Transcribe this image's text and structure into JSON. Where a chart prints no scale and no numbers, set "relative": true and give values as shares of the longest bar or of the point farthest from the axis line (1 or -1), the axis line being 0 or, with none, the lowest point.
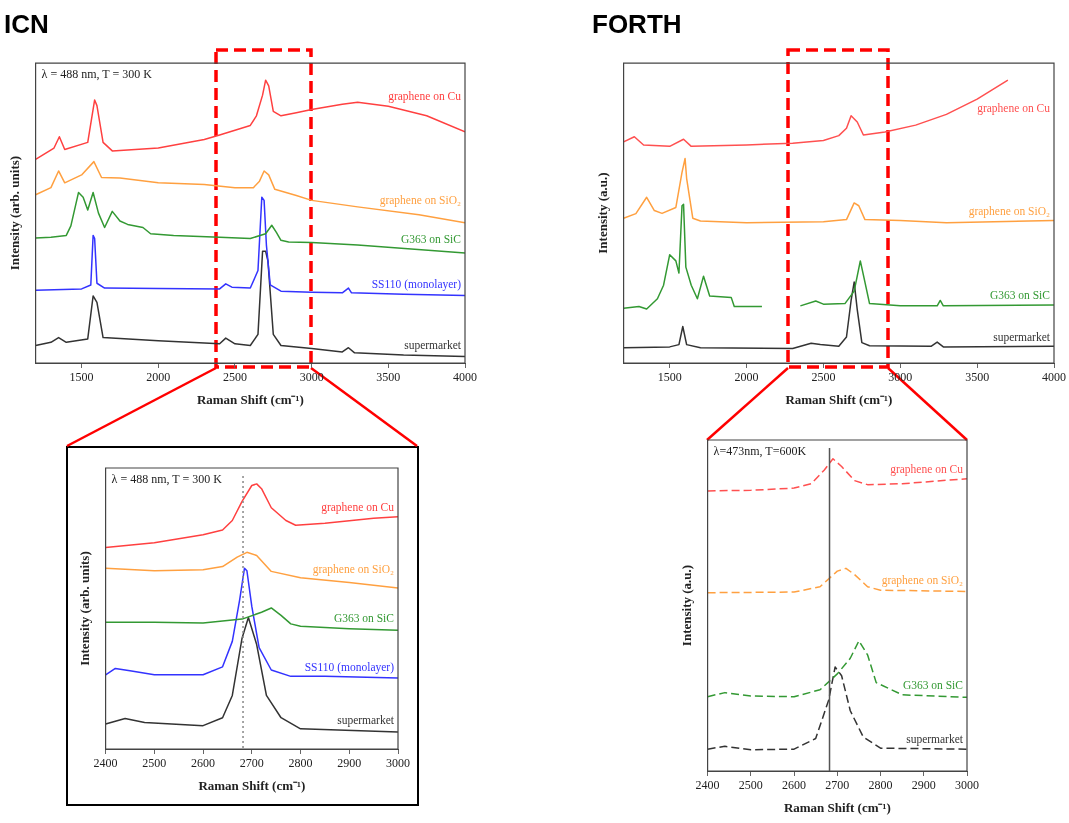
{
  "chart_data": [
    {
      "type": "line",
      "title": "ICN",
      "xlabel": "Raman Shift (cm⁻¹)",
      "ylabel": "Intensity (arb. units)",
      "annotations": [
        "λ = 488 nm, T = 300 K"
      ],
      "relative": true,
      "xlim": [
        1200,
        4000
      ],
      "xticks": [
        1500,
        2000,
        2500,
        3000,
        3500,
        4000
      ],
      "grid": false,
      "legend": false,
      "series": [
        {
          "name": "graphene on Cu",
          "color": "#ff4040",
          "x": [
            1200,
            1320,
            1355,
            1390,
            1540,
            1585,
            1600,
            1640,
            1700,
            2000,
            2300,
            2400,
            2600,
            2640,
            2680,
            2700,
            2720,
            2750,
            2800,
            2900,
            3000,
            3200,
            3300,
            3500,
            3750,
            4000
          ],
          "values": [
            0.72,
            0.76,
            0.8,
            0.755,
            0.78,
            0.93,
            0.91,
            0.78,
            0.75,
            0.76,
            0.79,
            0.806,
            0.84,
            0.874,
            0.947,
            1.0,
            0.98,
            0.89,
            0.874,
            0.885,
            0.896,
            0.915,
            0.922,
            0.908,
            0.874,
            0.817
          ]
        },
        {
          "name": "graphene on SiO₂",
          "color": "#ffa040",
          "x": [
            1200,
            1300,
            1350,
            1390,
            1500,
            1580,
            1630,
            1750,
            2000,
            2300,
            2500,
            2620,
            2660,
            2690,
            2720,
            2760,
            2900,
            3000,
            3300,
            3700,
            4000
          ],
          "values": [
            0.595,
            0.62,
            0.679,
            0.637,
            0.665,
            0.712,
            0.656,
            0.654,
            0.637,
            0.631,
            0.62,
            0.62,
            0.643,
            0.679,
            0.665,
            0.614,
            0.592,
            0.575,
            0.552,
            0.524,
            0.496
          ]
        },
        {
          "name": "G363 on SiC",
          "color": "#339933",
          "x": [
            1200,
            1300,
            1400,
            1430,
            1480,
            1510,
            1540,
            1575,
            1610,
            1650,
            1700,
            1750,
            1800,
            1900,
            1950,
            2100,
            2400,
            2600,
            2700,
            2740,
            2770,
            2800,
            2850,
            3000,
            3300,
            4000
          ],
          "values": [
            0.442,
            0.445,
            0.451,
            0.485,
            0.603,
            0.586,
            0.541,
            0.603,
            0.53,
            0.479,
            0.536,
            0.502,
            0.49,
            0.479,
            0.457,
            0.451,
            0.445,
            0.44,
            0.457,
            0.487,
            0.462,
            0.434,
            0.428,
            0.426,
            0.417,
            0.389
          ]
        },
        {
          "name": "SS110 (monolayer)",
          "color": "#3333ff",
          "x": [
            1200,
            1500,
            1560,
            1575,
            1585,
            1600,
            1650,
            2000,
            2400,
            2440,
            2480,
            2600,
            2650,
            2675,
            2690,
            2705,
            2730,
            2800,
            3000,
            3200,
            3240,
            3260,
            3600,
            4000
          ],
          "values": [
            0.257,
            0.262,
            0.276,
            0.451,
            0.44,
            0.282,
            0.265,
            0.263,
            0.262,
            0.28,
            0.268,
            0.265,
            0.327,
            0.586,
            0.575,
            0.417,
            0.276,
            0.254,
            0.25,
            0.248,
            0.265,
            0.248,
            0.243,
            0.239
          ]
        },
        {
          "name": "supermarket",
          "color": "#333333",
          "x": [
            1200,
            1300,
            1350,
            1400,
            1540,
            1575,
            1600,
            1640,
            2000,
            2400,
            2440,
            2500,
            2600,
            2650,
            2680,
            2700,
            2715,
            2750,
            2800,
            3000,
            3200,
            3240,
            3280,
            3600,
            4000
          ],
          "values": [
            0.062,
            0.073,
            0.09,
            0.073,
            0.085,
            0.237,
            0.214,
            0.09,
            0.079,
            0.068,
            0.088,
            0.068,
            0.062,
            0.101,
            0.395,
            0.395,
            0.361,
            0.101,
            0.062,
            0.051,
            0.039,
            0.054,
            0.036,
            0.028,
            0.023
          ]
        }
      ]
    },
    {
      "type": "line",
      "title": "FORTH",
      "xlabel": "Raman Shift (cm⁻¹)",
      "ylabel": "Intensity (a.u.)",
      "relative": true,
      "xlim": [
        1200,
        4000
      ],
      "xticks": [
        1500,
        2000,
        2500,
        3000,
        3500,
        4000
      ],
      "grid": false,
      "legend": false,
      "series": [
        {
          "name": "graphene on Cu",
          "color": "#ff5050",
          "x": [
            1200,
            1270,
            1330,
            1500,
            1590,
            1640,
            2000,
            2300,
            2500,
            2600,
            2650,
            2680,
            2720,
            2760,
            2900,
            3100,
            3300,
            3500,
            3700
          ],
          "values": [
            0.782,
            0.8,
            0.771,
            0.766,
            0.791,
            0.766,
            0.771,
            0.777,
            0.787,
            0.804,
            0.83,
            0.874,
            0.852,
            0.806,
            0.817,
            0.841,
            0.879,
            0.933,
            1.0
          ]
        },
        {
          "name": "graphene on SiO₂",
          "color": "#ffa040",
          "x": [
            1200,
            1280,
            1350,
            1400,
            1450,
            1540,
            1580,
            1600,
            1610,
            1650,
            1700,
            2000,
            2500,
            2650,
            2700,
            2730,
            2770,
            3000,
            3300,
            4000
          ],
          "values": [
            0.512,
            0.528,
            0.586,
            0.539,
            0.529,
            0.55,
            0.674,
            0.723,
            0.653,
            0.512,
            0.502,
            0.496,
            0.499,
            0.507,
            0.566,
            0.556,
            0.507,
            0.504,
            0.496,
            0.504
          ]
        },
        {
          "name": "G363 on SiC",
          "color": "#339933",
          "x": [
            1200,
            1300,
            1350,
            1420,
            1460,
            1500,
            1540,
            1560,
            1580,
            1590,
            1605,
            1640,
            1680,
            1720,
            1760,
            1900,
            1920,
            2100,
            2200,
            2350,
            2450,
            2500,
            2640,
            2700,
            2740,
            2770,
            2800,
            3000,
            3240,
            3260,
            3280,
            4000
          ],
          "values": [
            0.194,
            0.2,
            0.191,
            0.227,
            0.275,
            0.383,
            0.361,
            0.318,
            0.556,
            0.561,
            0.339,
            0.275,
            0.227,
            0.307,
            0.237,
            0.232,
            0.2,
            0.2,
            null,
            0.202,
            0.219,
            0.208,
            0.21,
            0.254,
            0.361,
            0.286,
            0.21,
            0.202,
            0.202,
            0.221,
            0.202,
            0.205
          ]
        },
        {
          "name": "supermarket",
          "color": "#333333",
          "x": [
            1200,
            1500,
            1560,
            1585,
            1610,
            1700,
            2300,
            2420,
            2480,
            2600,
            2650,
            2680,
            2700,
            2720,
            2750,
            2800,
            3200,
            3240,
            3280,
            4000
          ],
          "values": [
            0.054,
            0.057,
            0.065,
            0.129,
            0.065,
            0.054,
            0.051,
            0.07,
            0.065,
            0.059,
            0.092,
            0.221,
            0.286,
            0.189,
            0.072,
            0.061,
            0.059,
            0.074,
            0.057,
            0.059
          ]
        }
      ]
    },
    {
      "type": "line",
      "xlabel": "Raman Shift (cm⁻¹)",
      "ylabel": "Intensity (arb. units)",
      "annotations": [
        "λ = 488 nm, T = 300 K"
      ],
      "relative": true,
      "xlim": [
        2400,
        3000
      ],
      "xticks": [
        2400,
        2500,
        2600,
        2700,
        2800,
        2900,
        3000
      ],
      "grid": false,
      "legend": false,
      "ref_lines": [
        {
          "axis": "x",
          "value": 2682,
          "color": "#888888",
          "line_style": "dotted"
        }
      ],
      "series": [
        {
          "name": "graphene on Cu",
          "color": "#ff4040",
          "x": [
            2400,
            2500,
            2600,
            2640,
            2660,
            2680,
            2700,
            2710,
            2720,
            2740,
            2770,
            2790,
            2850,
            2950,
            3000
          ],
          "values": [
            0.76,
            0.778,
            0.808,
            0.826,
            0.862,
            0.934,
            0.994,
            1.0,
            0.982,
            0.91,
            0.862,
            0.844,
            0.852,
            0.87,
            0.876
          ]
        },
        {
          "name": "graphene on SiO₂",
          "color": "#ffa040",
          "x": [
            2400,
            2500,
            2600,
            2640,
            2670,
            2690,
            2710,
            2740,
            2800,
            2900,
            3000
          ],
          "values": [
            0.682,
            0.672,
            0.676,
            0.688,
            0.724,
            0.742,
            0.73,
            0.67,
            0.646,
            0.628,
            0.607
          ]
        },
        {
          "name": "G363 on SiC",
          "color": "#339933",
          "x": [
            2400,
            2500,
            2600,
            2680,
            2720,
            2740,
            2760,
            2780,
            2800,
            2900,
            3000
          ],
          "values": [
            0.478,
            0.478,
            0.475,
            0.49,
            0.516,
            0.532,
            0.504,
            0.472,
            0.463,
            0.454,
            0.448
          ]
        },
        {
          "name": "SS110 (monolayer)",
          "color": "#3333ff",
          "x": [
            2400,
            2420,
            2450,
            2500,
            2600,
            2640,
            2660,
            2675,
            2685,
            2690,
            2700,
            2715,
            2740,
            2780,
            2850,
            3000
          ],
          "values": [
            0.28,
            0.304,
            0.295,
            0.28,
            0.28,
            0.31,
            0.406,
            0.562,
            0.682,
            0.672,
            0.538,
            0.382,
            0.298,
            0.274,
            0.274,
            0.268
          ]
        },
        {
          "name": "supermarket",
          "color": "#333333",
          "x": [
            2400,
            2440,
            2480,
            2600,
            2640,
            2660,
            2680,
            2693,
            2710,
            2730,
            2760,
            2800,
            3000
          ],
          "values": [
            0.094,
            0.115,
            0.1,
            0.088,
            0.118,
            0.202,
            0.418,
            0.496,
            0.394,
            0.202,
            0.118,
            0.076,
            0.064
          ]
        }
      ]
    },
    {
      "type": "line",
      "xlabel": "Raman Shift (cm⁻¹)",
      "ylabel": "Intensity (a.u.)",
      "annotations": [
        "λ=473nm, T=600K"
      ],
      "relative": true,
      "xlim": [
        2400,
        3000
      ],
      "xticks": [
        2400,
        2500,
        2600,
        2700,
        2800,
        2900,
        3000
      ],
      "grid": false,
      "legend": false,
      "line_style": "dashed",
      "ref_lines": [
        {
          "axis": "x",
          "value": 2682,
          "color": "#555555",
          "line_style": "solid"
        }
      ],
      "series": [
        {
          "name": "graphene on Cu",
          "color": "#ff5050",
          "x": [
            2400,
            2500,
            2600,
            2640,
            2670,
            2690,
            2710,
            2740,
            2770,
            2850,
            3000
          ],
          "values": [
            0.897,
            0.899,
            0.906,
            0.92,
            0.964,
            1.0,
            0.975,
            0.93,
            0.917,
            0.92,
            0.936
          ]
        },
        {
          "name": "graphene on SiO₂",
          "color": "#ffa040",
          "x": [
            2400,
            2600,
            2660,
            2700,
            2720,
            2740,
            2770,
            2800,
            3000
          ],
          "values": [
            0.571,
            0.573,
            0.59,
            0.64,
            0.649,
            0.629,
            0.59,
            0.579,
            0.575
          ]
        },
        {
          "name": "G363 on SiC",
          "color": "#339933",
          "x": [
            2400,
            2440,
            2500,
            2600,
            2660,
            2700,
            2730,
            2750,
            2770,
            2790,
            2850,
            3000
          ],
          "values": [
            0.238,
            0.251,
            0.24,
            0.238,
            0.26,
            0.311,
            0.361,
            0.417,
            0.372,
            0.283,
            0.244,
            0.236
          ]
        },
        {
          "name": "supermarket",
          "color": "#333333",
          "x": [
            2400,
            2440,
            2500,
            2600,
            2650,
            2680,
            2695,
            2710,
            2730,
            2760,
            2800,
            3000
          ],
          "values": [
            0.07,
            0.079,
            0.068,
            0.07,
            0.104,
            0.227,
            0.333,
            0.305,
            0.193,
            0.109,
            0.073,
            0.07
          ]
        }
      ]
    }
  ]
}
